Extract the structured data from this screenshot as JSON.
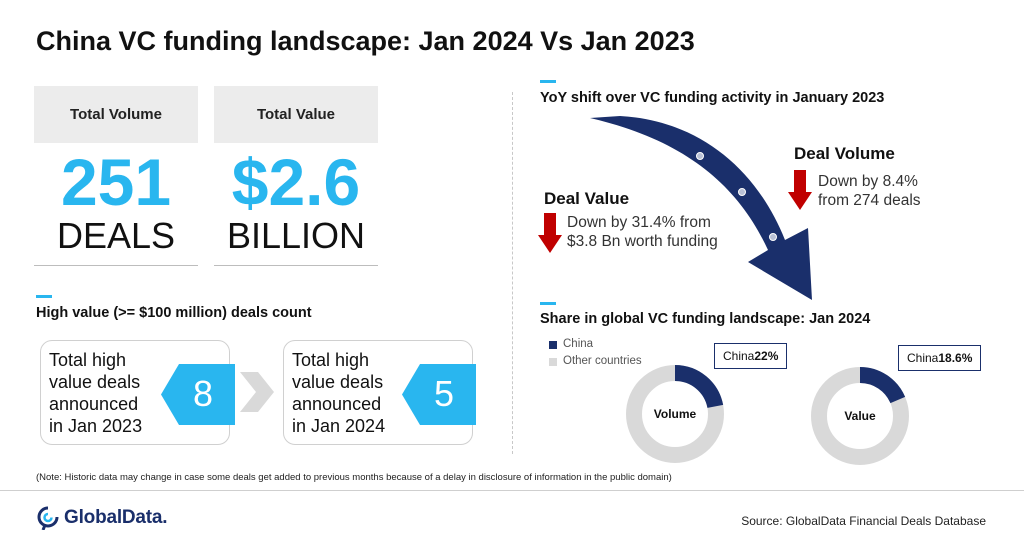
{
  "title": "China VC funding landscape: Jan 2024 Vs Jan 2023",
  "kpis": {
    "volume": {
      "label": "Total Volume",
      "value": "251",
      "unit": "DEALS"
    },
    "value": {
      "label": "Total Value",
      "value": "$2.6",
      "unit": "BILLION"
    }
  },
  "high_value": {
    "title": "High value (>= $100 million) deals count",
    "box_2023": {
      "text_lines": [
        "Total high",
        "value deals",
        "announced",
        "in Jan 2023"
      ],
      "count": "8"
    },
    "box_2024": {
      "text_lines": [
        "Total high",
        "value deals",
        "announced",
        "in Jan 2024"
      ],
      "count": "5"
    }
  },
  "yoy": {
    "title": "YoY shift over VC funding activity in January 2023",
    "deal_value": {
      "title": "Deal Value",
      "lines": [
        "Down by 31.4% from",
        "$3.8 Bn worth funding"
      ]
    },
    "deal_volume": {
      "title": "Deal Volume",
      "lines": [
        "Down by 8.4%",
        "from 274 deals"
      ]
    }
  },
  "share": {
    "title": "Share in global VC funding landscape: Jan 2024",
    "legend": [
      {
        "label": "China",
        "color": "#1a2f6b"
      },
      {
        "label": "Other countries",
        "color": "#d9d9d9"
      }
    ],
    "volume": {
      "label": "Volume",
      "callout_prefix": "China ",
      "callout_value": "22%",
      "share_pct": 22
    },
    "value": {
      "label": "Value",
      "callout_prefix": "China ",
      "callout_value": "18.6%",
      "share_pct": 18.6
    }
  },
  "note": "(Note:  Historic data may change in case some deals get added to previous months because of a delay in disclosure of information in the public domain)",
  "logo": {
    "text": "GlobalData."
  },
  "source": "Source:  GlobalData Financial Deals Database",
  "colors": {
    "accent": "#29b6ef",
    "navy": "#1a2f6b",
    "red": "#c00000",
    "grey": "#d9d9d9"
  },
  "icons": {
    "trend": "curved-down-arrow-icon",
    "decline": "red-down-arrow-icon",
    "logo": "globaldata-logo-icon"
  }
}
